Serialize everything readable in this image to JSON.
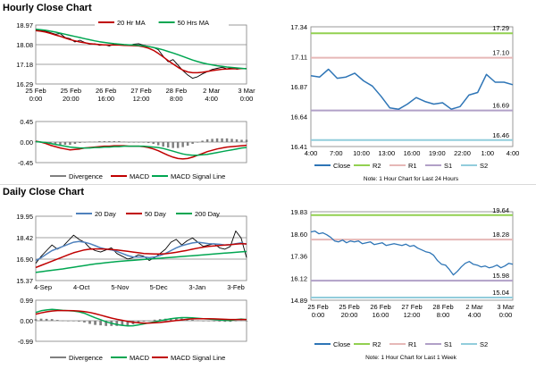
{
  "hourly_title": "Hourly Close Chart",
  "daily_title": "Daily Close Chart",
  "chart_data": [
    {
      "id": "hourly_price",
      "type": "line",
      "ylim": [
        16.29,
        18.97
      ],
      "yticks": [
        "18.97",
        "18.08",
        "17.18",
        "16.29"
      ],
      "xlabels": [
        [
          "25 Feb",
          "0:00"
        ],
        [
          "25 Feb",
          "20:00"
        ],
        [
          "26 Feb",
          "16:00"
        ],
        [
          "27 Feb",
          "12:00"
        ],
        [
          "28 Feb",
          "8:00"
        ],
        [
          "2 Mar",
          "4:00"
        ],
        [
          "3 Mar",
          "0:00"
        ]
      ],
      "legend": [
        {
          "name": "20 Hr MA",
          "color": "#c00000"
        },
        {
          "name": "50 Hrs MA",
          "color": "#00a651"
        }
      ],
      "series": [
        {
          "name": "Close",
          "color": "#000000",
          "width": 0.9,
          "values": [
            18.75,
            18.72,
            18.69,
            18.62,
            18.55,
            18.58,
            18.4,
            18.35,
            18.2,
            18.28,
            18.18,
            18.1,
            18.12,
            18.05,
            18.08,
            18.02,
            18.1,
            18.06,
            18.08,
            18.04,
            18.1,
            18.12,
            18.05,
            18.0,
            17.95,
            17.85,
            17.55,
            17.3,
            17.4,
            17.15,
            16.9,
            16.7,
            16.55,
            16.62,
            16.75,
            16.85,
            16.95,
            17.0,
            17.05,
            16.98,
            17.02,
            16.96,
            17.0,
            17.0
          ]
        },
        {
          "name": "20 Hr MA",
          "color": "#c00000",
          "width": 1.5,
          "values": [
            18.72,
            18.69,
            18.65,
            18.59,
            18.52,
            18.46,
            18.38,
            18.31,
            18.25,
            18.2,
            18.16,
            18.12,
            18.1,
            18.08,
            18.07,
            18.06,
            18.06,
            18.06,
            18.05,
            18.04,
            18.03,
            18.02,
            17.98,
            17.92,
            17.82,
            17.68,
            17.52,
            17.35,
            17.2,
            17.05,
            16.92,
            16.84,
            16.8,
            16.8,
            16.82,
            16.86,
            16.9,
            16.93,
            16.96,
            16.97,
            16.98,
            16.98,
            16.99,
            16.99
          ]
        },
        {
          "name": "50 Hrs MA",
          "color": "#00a651",
          "width": 1.5,
          "values": [
            18.78,
            18.76,
            18.73,
            18.69,
            18.65,
            18.6,
            18.55,
            18.5,
            18.45,
            18.4,
            18.35,
            18.3,
            18.25,
            18.21,
            18.18,
            18.15,
            18.12,
            18.1,
            18.08,
            18.07,
            18.06,
            18.04,
            18.02,
            17.99,
            17.95,
            17.9,
            17.84,
            17.77,
            17.7,
            17.62,
            17.54,
            17.46,
            17.38,
            17.31,
            17.25,
            17.2,
            17.16,
            17.12,
            17.09,
            17.06,
            17.04,
            17.02,
            17.0,
            16.98
          ]
        }
      ]
    },
    {
      "id": "hourly_macd",
      "type": "line",
      "ylim": [
        -0.45,
        0.45
      ],
      "yticks": [
        "0.45",
        "0.00",
        "-0.45"
      ],
      "legend": [
        {
          "name": "Divergence",
          "color": "#7f7f7f"
        },
        {
          "name": "MACD",
          "color": "#c00000"
        },
        {
          "name": "MACD Signal Line",
          "color": "#00a651"
        }
      ],
      "series": [
        {
          "name": "MACD",
          "color": "#c00000",
          "width": 1.5,
          "values": [
            0.02,
            0.0,
            -0.03,
            -0.07,
            -0.1,
            -0.13,
            -0.15,
            -0.17,
            -0.16,
            -0.15,
            -0.13,
            -0.12,
            -0.11,
            -0.1,
            -0.09,
            -0.09,
            -0.08,
            -0.08,
            -0.08,
            -0.09,
            -0.09,
            -0.09,
            -0.1,
            -0.12,
            -0.15,
            -0.19,
            -0.24,
            -0.29,
            -0.33,
            -0.36,
            -0.37,
            -0.36,
            -0.33,
            -0.29,
            -0.25,
            -0.21,
            -0.18,
            -0.15,
            -0.13,
            -0.11,
            -0.1,
            -0.09,
            -0.08,
            -0.07
          ]
        },
        {
          "name": "MACD Signal Line",
          "color": "#00a651",
          "width": 1.5,
          "values": [
            0.01,
            0.0,
            -0.01,
            -0.03,
            -0.05,
            -0.07,
            -0.09,
            -0.11,
            -0.12,
            -0.13,
            -0.13,
            -0.13,
            -0.12,
            -0.12,
            -0.11,
            -0.11,
            -0.1,
            -0.1,
            -0.09,
            -0.09,
            -0.09,
            -0.09,
            -0.09,
            -0.1,
            -0.11,
            -0.12,
            -0.14,
            -0.17,
            -0.2,
            -0.23,
            -0.26,
            -0.28,
            -0.29,
            -0.29,
            -0.28,
            -0.27,
            -0.25,
            -0.23,
            -0.21,
            -0.19,
            -0.17,
            -0.15,
            -0.13,
            -0.12
          ]
        }
      ]
    },
    {
      "id": "hourly_pivot",
      "type": "line",
      "ylim": [
        16.41,
        17.34
      ],
      "yticks": [
        "17.34",
        "17.11",
        "16.87",
        "16.64",
        "16.41"
      ],
      "xticks": [
        "4:00",
        "7:00",
        "10:00",
        "13:00",
        "16:00",
        "19:00",
        "22:00",
        "1:00",
        "4:00"
      ],
      "levels": [
        {
          "name": "R2",
          "value": 17.29,
          "label": "17.29",
          "color": "#92d050"
        },
        {
          "name": "R1",
          "value": 17.1,
          "label": "17.10",
          "color": "#e6b8b7"
        },
        {
          "name": "S1",
          "value": 16.69,
          "label": "16.69",
          "color": "#b1a0c7"
        },
        {
          "name": "S2",
          "value": 16.46,
          "label": "16.46",
          "color": "#92cddc"
        }
      ],
      "series": [
        {
          "name": "Close",
          "color": "#2e75b6",
          "width": 1.5,
          "values": [
            16.96,
            16.95,
            17.01,
            16.94,
            16.95,
            16.98,
            16.92,
            16.88,
            16.8,
            16.71,
            16.7,
            16.74,
            16.79,
            16.76,
            16.74,
            16.75,
            16.7,
            16.72,
            16.81,
            16.83,
            16.97,
            16.91,
            16.91,
            16.89
          ]
        }
      ],
      "legend": [
        {
          "name": "Close",
          "color": "#2e75b6"
        },
        {
          "name": "R2",
          "color": "#92d050"
        },
        {
          "name": "R1",
          "color": "#e6b8b7"
        },
        {
          "name": "S1",
          "color": "#b1a0c7"
        },
        {
          "name": "S2",
          "color": "#92cddc"
        }
      ],
      "note": "Note: 1 Hour Chart for Last 24 Hours"
    },
    {
      "id": "daily_price",
      "type": "line",
      "ylim": [
        15.37,
        19.95
      ],
      "yticks": [
        "19.95",
        "18.42",
        "16.90",
        "15.37"
      ],
      "xticks": [
        "4-Sep",
        "4-Oct",
        "5-Nov",
        "5-Dec",
        "3-Jan",
        "3-Feb"
      ],
      "legend": [
        {
          "name": "20 Day",
          "color": "#4f81bd"
        },
        {
          "name": "50 Day",
          "color": "#c00000"
        },
        {
          "name": "200 Day",
          "color": "#00a651"
        }
      ],
      "series": [
        {
          "name": "Close",
          "color": "#000000",
          "width": 0.9,
          "values": [
            16.6,
            17.1,
            17.5,
            17.9,
            17.6,
            17.8,
            18.2,
            18.6,
            18.3,
            18.1,
            17.7,
            17.5,
            17.4,
            17.55,
            17.7,
            17.3,
            17.1,
            16.9,
            17.0,
            17.2,
            17.1,
            16.8,
            17.0,
            17.3,
            17.6,
            18.1,
            18.3,
            17.9,
            18.2,
            18.4,
            18.1,
            17.8,
            17.9,
            18.0,
            17.7,
            17.6,
            17.8,
            18.9,
            18.4,
            17.0
          ]
        },
        {
          "name": "20 Day",
          "color": "#4f81bd",
          "width": 1.5,
          "values": [
            16.8,
            17.0,
            17.25,
            17.5,
            17.65,
            17.8,
            17.95,
            18.1,
            18.15,
            18.1,
            18.0,
            17.85,
            17.7,
            17.6,
            17.55,
            17.45,
            17.3,
            17.15,
            17.05,
            17.05,
            17.05,
            17.0,
            17.05,
            17.15,
            17.3,
            17.5,
            17.7,
            17.85,
            17.95,
            18.05,
            18.1,
            18.05,
            18.0,
            17.98,
            17.95,
            17.9,
            17.92,
            18.0,
            18.05,
            17.95
          ]
        },
        {
          "name": "50 Day",
          "color": "#c00000",
          "width": 1.5,
          "values": [
            16.3,
            16.45,
            16.6,
            16.75,
            16.9,
            17.05,
            17.2,
            17.35,
            17.45,
            17.55,
            17.6,
            17.62,
            17.62,
            17.6,
            17.58,
            17.55,
            17.5,
            17.45,
            17.4,
            17.35,
            17.3,
            17.28,
            17.26,
            17.26,
            17.28,
            17.32,
            17.38,
            17.45,
            17.52,
            17.6,
            17.68,
            17.75,
            17.8,
            17.84,
            17.87,
            17.9,
            17.92,
            17.96,
            18.0,
            17.98
          ]
        },
        {
          "name": "200 Day",
          "color": "#00a651",
          "width": 1.5,
          "values": [
            15.95,
            16.0,
            16.05,
            16.1,
            16.15,
            16.2,
            16.26,
            16.32,
            16.38,
            16.44,
            16.5,
            16.55,
            16.6,
            16.64,
            16.68,
            16.72,
            16.75,
            16.78,
            16.81,
            16.84,
            16.87,
            16.9,
            16.93,
            16.96,
            16.99,
            17.02,
            17.05,
            17.08,
            17.11,
            17.14,
            17.17,
            17.2,
            17.23,
            17.26,
            17.29,
            17.32,
            17.35,
            17.38,
            17.41,
            17.44
          ]
        }
      ]
    },
    {
      "id": "daily_macd",
      "type": "line",
      "ylim": [
        -0.99,
        0.99
      ],
      "yticks": [
        "0.99",
        "0.00",
        "-0.99"
      ],
      "legend": [
        {
          "name": "Divergence",
          "color": "#7f7f7f"
        },
        {
          "name": "MACD",
          "color": "#00a651"
        },
        {
          "name": "MACD Signal Line",
          "color": "#c00000"
        }
      ],
      "series": [
        {
          "name": "MACD",
          "color": "#00a651",
          "width": 1.5,
          "values": [
            0.4,
            0.48,
            0.52,
            0.55,
            0.53,
            0.5,
            0.48,
            0.47,
            0.43,
            0.36,
            0.25,
            0.14,
            0.05,
            -0.05,
            -0.12,
            -0.18,
            -0.22,
            -0.25,
            -0.24,
            -0.2,
            -0.15,
            -0.1,
            -0.05,
            0.0,
            0.05,
            0.1,
            0.13,
            0.15,
            0.15,
            0.14,
            0.12,
            0.1,
            0.08,
            0.06,
            0.04,
            0.02,
            0.01,
            0.05,
            0.08,
            0.05
          ]
        },
        {
          "name": "MACD Signal Line",
          "color": "#c00000",
          "width": 1.5,
          "values": [
            0.32,
            0.38,
            0.43,
            0.47,
            0.49,
            0.49,
            0.49,
            0.48,
            0.47,
            0.44,
            0.4,
            0.34,
            0.27,
            0.2,
            0.13,
            0.07,
            0.02,
            -0.03,
            -0.07,
            -0.1,
            -0.11,
            -0.11,
            -0.1,
            -0.08,
            -0.05,
            -0.02,
            0.01,
            0.04,
            0.07,
            0.09,
            0.1,
            0.1,
            0.1,
            0.09,
            0.08,
            0.07,
            0.06,
            0.06,
            0.06,
            0.06
          ]
        }
      ]
    },
    {
      "id": "daily_pivot",
      "type": "line",
      "ylim": [
        14.89,
        19.83
      ],
      "yticks": [
        "19.83",
        "18.60",
        "17.36",
        "16.12",
        "14.89"
      ],
      "xlabels": [
        [
          "25 Feb",
          "0:00"
        ],
        [
          "25 Feb",
          "20:00"
        ],
        [
          "26 Feb",
          "16:00"
        ],
        [
          "27 Feb",
          "12:00"
        ],
        [
          "28 Feb",
          "8:00"
        ],
        [
          "2 Mar",
          "4:00"
        ],
        [
          "3 Mar",
          "0:00"
        ]
      ],
      "levels": [
        {
          "name": "R2",
          "value": 19.64,
          "label": "19.64",
          "color": "#92d050"
        },
        {
          "name": "R1",
          "value": 18.28,
          "label": "18.28",
          "color": "#e6b8b7"
        },
        {
          "name": "S1",
          "value": 15.98,
          "label": "15.98",
          "color": "#b1a0c7"
        },
        {
          "name": "S2",
          "value": 15.04,
          "label": "15.04",
          "color": "#92cddc"
        }
      ],
      "series": [
        {
          "name": "Close",
          "color": "#2e75b6",
          "width": 1.3,
          "values": [
            18.7,
            18.75,
            18.6,
            18.65,
            18.55,
            18.4,
            18.2,
            18.15,
            18.25,
            18.1,
            18.2,
            18.15,
            18.2,
            18.05,
            18.1,
            18.15,
            18.0,
            18.05,
            18.1,
            17.95,
            18.0,
            18.05,
            18.0,
            17.95,
            18.02,
            17.9,
            17.95,
            17.8,
            17.7,
            17.6,
            17.55,
            17.4,
            17.1,
            16.9,
            16.85,
            16.6,
            16.3,
            16.5,
            16.75,
            16.95,
            17.05,
            16.9,
            16.85,
            16.75,
            16.8,
            16.7,
            16.75,
            16.85,
            16.7,
            16.8,
            16.95,
            16.9
          ]
        }
      ],
      "legend": [
        {
          "name": "Close",
          "color": "#2e75b6"
        },
        {
          "name": "R2",
          "color": "#92d050"
        },
        {
          "name": "R1",
          "color": "#e6b8b7"
        },
        {
          "name": "S1",
          "color": "#b1a0c7"
        },
        {
          "name": "S2",
          "color": "#92cddc"
        }
      ],
      "note": "Note: 1 Hour Chart for Last 1 Week"
    }
  ]
}
